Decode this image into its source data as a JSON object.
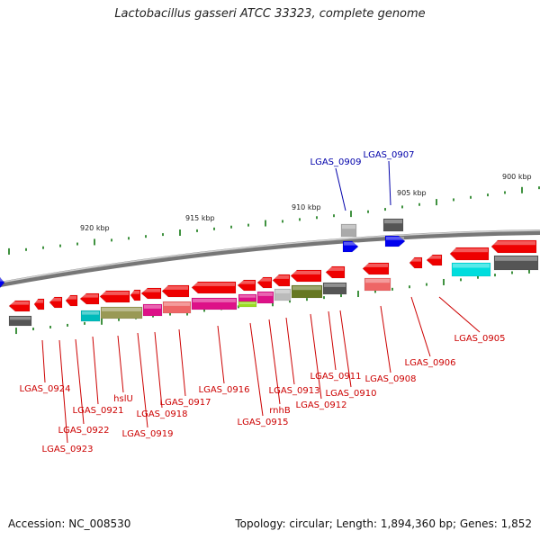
{
  "title": "Lactobacillus gasseri ATCC 33323, complete genome",
  "footer": {
    "accession": "Accession: NC_008530",
    "summary": "Topology: circular; Length: 1,894,360 bp; Genes: 1,852"
  },
  "scale_ticks": [
    "920 kbp",
    "915 kbp",
    "910 kbp",
    "905 kbp",
    "900 kbp"
  ],
  "top_labels": [
    "LGAS_0909",
    "LGAS_0907"
  ],
  "bottom_labels": [
    "LGAS_0924",
    "LGAS_0923",
    "LGAS_0922",
    "LGAS_0921",
    "hslU",
    "LGAS_0919",
    "LGAS_0918",
    "LGAS_0917",
    "LGAS_0916",
    "LGAS_0915",
    "rnhB",
    "LGAS_0913",
    "LGAS_0912",
    "LGAS_0911",
    "LGAS_0910",
    "LGAS_0908",
    "LGAS_0906",
    "LGAS_0905"
  ],
  "colors": {
    "forward_gene": "#0000ee",
    "reverse_gene": "#ee0000",
    "label_top": "#0000aa",
    "label_bottom": "#cc0000",
    "backbone": "#999999",
    "tick": "#117711"
  }
}
